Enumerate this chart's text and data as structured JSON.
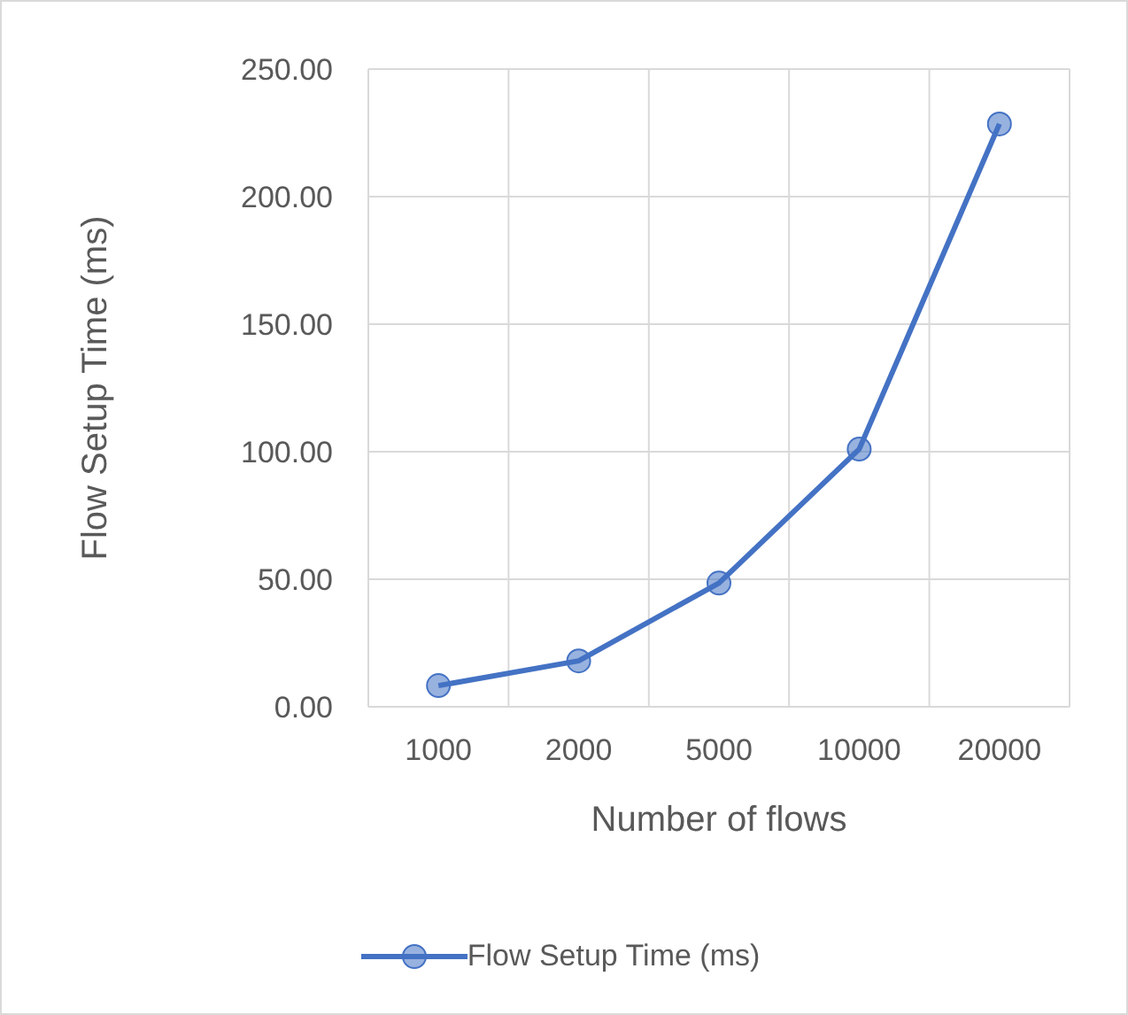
{
  "chart_data": {
    "type": "line",
    "xlabel": "Number of flows",
    "ylabel": "Flow Setup Time (ms)",
    "categories": [
      "1000",
      "2000",
      "5000",
      "10000",
      "20000"
    ],
    "series": [
      {
        "name": "Flow Setup Time (ms)",
        "color": "#4472c4",
        "values": [
          8.3,
          18,
          48.5,
          101,
          228.5
        ]
      }
    ],
    "ylim": [
      0,
      250
    ],
    "yticks": [
      {
        "value": 0,
        "label": "0.00"
      },
      {
        "value": 50,
        "label": "50.00"
      },
      {
        "value": 100,
        "label": "100.00"
      },
      {
        "value": 150,
        "label": "150.00"
      },
      {
        "value": 200,
        "label": "200.00"
      },
      {
        "value": 250,
        "label": "250.00"
      }
    ],
    "grid": true,
    "legend": "bottom",
    "marker": "circle",
    "line_style": "solid"
  }
}
